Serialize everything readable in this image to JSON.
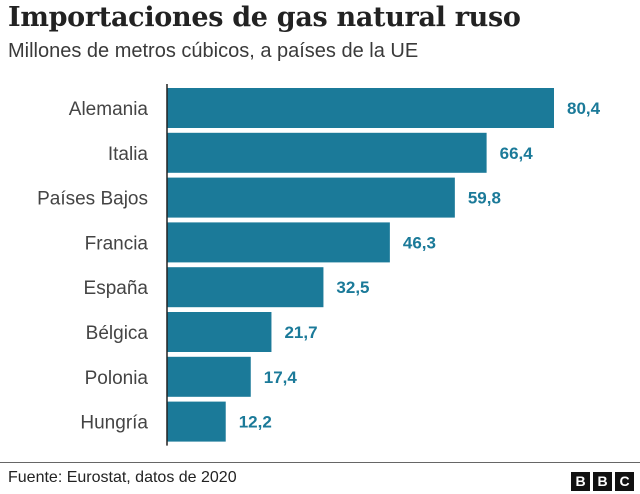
{
  "header": {
    "title": "Importaciones de gas natural ruso",
    "subtitle": "Millones de metros cúbicos, a países de la UE"
  },
  "footer": {
    "source": "Fuente: Eurostat, datos de 2020",
    "logo_letters": [
      "B",
      "B",
      "C"
    ]
  },
  "colors": {
    "bar": "#1b7a99",
    "value_label": "#1b7a99",
    "category_label": "#444444",
    "axis": "#222222"
  },
  "chart_data": {
    "type": "bar",
    "orientation": "horizontal",
    "title": "Importaciones de gas natural ruso",
    "subtitle": "Millones de metros cúbicos, a países de la UE",
    "categories": [
      "Alemania",
      "Italia",
      "Países Bajos",
      "Francia",
      "España",
      "Bélgica",
      "Polonia",
      "Hungría"
    ],
    "values": [
      80.4,
      66.4,
      59.8,
      46.3,
      32.5,
      21.7,
      17.4,
      12.2
    ],
    "value_labels": [
      "80,4",
      "66,4",
      "59,8",
      "46,3",
      "32,5",
      "21,7",
      "17,4",
      "12,2"
    ],
    "xlim": [
      0,
      80.4
    ],
    "grid": false,
    "legend": "none"
  }
}
